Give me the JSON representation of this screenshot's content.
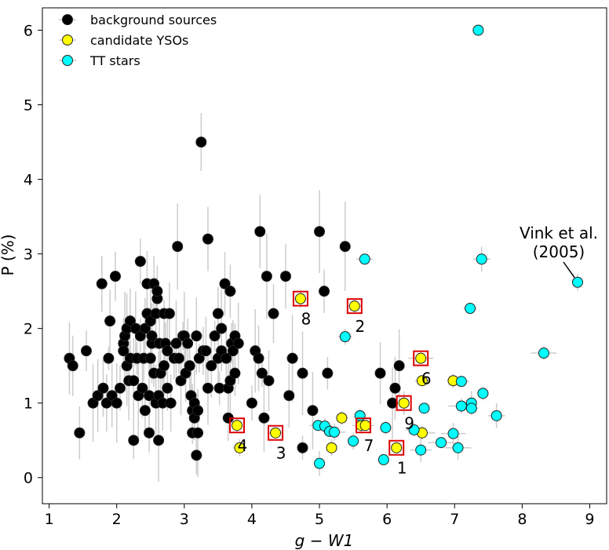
{
  "chart_data": {
    "type": "scatter",
    "title": "",
    "xlabel_base": "g",
    "xlabel_sep": " − ",
    "xlabel_band": "W1",
    "ylabel": "P (%)",
    "xlim": [
      0.9,
      9.25
    ],
    "ylim": [
      -0.35,
      6.3
    ],
    "xticks": [
      "1",
      "2",
      "3",
      "4",
      "5",
      "6",
      "7",
      "8",
      "9"
    ],
    "yticks": [
      "0",
      "1",
      "2",
      "3",
      "4",
      "5",
      "6"
    ],
    "legend_position": "top-left",
    "series": [
      {
        "name": "background sources",
        "color": "#000000",
        "points": [
          [
            1.3,
            1.6
          ],
          [
            1.35,
            1.5
          ],
          [
            1.45,
            0.6
          ],
          [
            1.55,
            1.7
          ],
          [
            1.65,
            1.0
          ],
          [
            1.72,
            1.1
          ],
          [
            1.78,
            2.6
          ],
          [
            1.8,
            1.2
          ],
          [
            1.85,
            1.0
          ],
          [
            1.88,
            1.6
          ],
          [
            1.9,
            2.1
          ],
          [
            1.93,
            1.1
          ],
          [
            1.98,
            2.7
          ],
          [
            2.0,
            1.0
          ],
          [
            2.05,
            1.2
          ],
          [
            2.1,
            1.8
          ],
          [
            2.1,
            1.7
          ],
          [
            2.12,
            1.9
          ],
          [
            2.15,
            2.0
          ],
          [
            2.15,
            1.5
          ],
          [
            2.18,
            1.3
          ],
          [
            2.2,
            1.6
          ],
          [
            2.2,
            2.1
          ],
          [
            2.25,
            1.3
          ],
          [
            2.25,
            0.5
          ],
          [
            2.28,
            2.0
          ],
          [
            2.3,
            1.6
          ],
          [
            2.32,
            1.1
          ],
          [
            2.35,
            1.9
          ],
          [
            2.35,
            2.9
          ],
          [
            2.38,
            1.2
          ],
          [
            2.4,
            1.6
          ],
          [
            2.42,
            0.9
          ],
          [
            2.42,
            2.0
          ],
          [
            2.45,
            2.2
          ],
          [
            2.45,
            2.6
          ],
          [
            2.48,
            1.1
          ],
          [
            2.48,
            0.6
          ],
          [
            2.5,
            1.6
          ],
          [
            2.5,
            2.1
          ],
          [
            2.52,
            1.8
          ],
          [
            2.52,
            1.9
          ],
          [
            2.55,
            1.4
          ],
          [
            2.55,
            2.6
          ],
          [
            2.58,
            1.0
          ],
          [
            2.58,
            2.2
          ],
          [
            2.6,
            2.4
          ],
          [
            2.6,
            2.5
          ],
          [
            2.62,
            1.1
          ],
          [
            2.62,
            0.5
          ],
          [
            2.63,
            1.8
          ],
          [
            2.65,
            1.4
          ],
          [
            2.68,
            1.0
          ],
          [
            2.7,
            2.2
          ],
          [
            2.7,
            1.5
          ],
          [
            2.72,
            1.8
          ],
          [
            2.75,
            1.2
          ],
          [
            2.75,
            1.7
          ],
          [
            2.78,
            2.2
          ],
          [
            2.8,
            1.0
          ],
          [
            2.85,
            1.6
          ],
          [
            2.88,
            1.8
          ],
          [
            2.9,
            3.1
          ],
          [
            2.92,
            1.6
          ],
          [
            2.95,
            1.3
          ],
          [
            2.98,
            1.9
          ],
          [
            3.0,
            1.9
          ],
          [
            3.02,
            1.4
          ],
          [
            3.05,
            1.8
          ],
          [
            3.08,
            1.5
          ],
          [
            3.1,
            1.1
          ],
          [
            3.12,
            0.9
          ],
          [
            3.12,
            0.6
          ],
          [
            3.15,
            1.0
          ],
          [
            3.15,
            0.8
          ],
          [
            3.18,
            0.3
          ],
          [
            3.18,
            1.9
          ],
          [
            3.2,
            0.6
          ],
          [
            3.2,
            0.9
          ],
          [
            3.22,
            1.6
          ],
          [
            3.25,
            4.5
          ],
          [
            3.28,
            1.7
          ],
          [
            3.32,
            1.7
          ],
          [
            3.35,
            1.2
          ],
          [
            3.35,
            3.2
          ],
          [
            3.4,
            1.5
          ],
          [
            3.45,
            1.9
          ],
          [
            3.5,
            2.2
          ],
          [
            3.5,
            1.6
          ],
          [
            3.52,
            1.2
          ],
          [
            3.55,
            1.7
          ],
          [
            3.55,
            2.0
          ],
          [
            3.6,
            2.6
          ],
          [
            3.62,
            1.6
          ],
          [
            3.65,
            1.2
          ],
          [
            3.65,
            0.8
          ],
          [
            3.68,
            1.3
          ],
          [
            3.68,
            2.5
          ],
          [
            3.7,
            1.8
          ],
          [
            3.72,
            1.7
          ],
          [
            3.75,
            1.9
          ],
          [
            3.75,
            1.4
          ],
          [
            3.8,
            1.8
          ],
          [
            4.0,
            1.0
          ],
          [
            4.05,
            1.7
          ],
          [
            4.1,
            1.6
          ],
          [
            4.12,
            3.3
          ],
          [
            4.15,
            1.4
          ],
          [
            4.18,
            0.8
          ],
          [
            4.22,
            2.7
          ],
          [
            4.25,
            1.3
          ],
          [
            4.32,
            2.2
          ],
          [
            4.5,
            2.7
          ],
          [
            4.55,
            1.1
          ],
          [
            4.6,
            1.6
          ],
          [
            4.75,
            1.4
          ],
          [
            4.75,
            0.4
          ],
          [
            4.9,
            0.9
          ],
          [
            5.0,
            3.3
          ],
          [
            5.07,
            2.5
          ],
          [
            5.12,
            1.4
          ],
          [
            5.38,
            3.1
          ],
          [
            5.9,
            1.4
          ],
          [
            6.08,
            1.0
          ],
          [
            6.12,
            1.2
          ],
          [
            6.18,
            1.5
          ]
        ]
      },
      {
        "name": "candidate YSOs",
        "color": "#ffff00",
        "points": [
          [
            4.72,
            2.4
          ],
          [
            5.52,
            2.3
          ],
          [
            6.5,
            1.6
          ],
          [
            6.52,
            1.3
          ],
          [
            6.98,
            1.3
          ],
          [
            6.25,
            1.0
          ],
          [
            3.78,
            0.7
          ],
          [
            5.62,
            0.7
          ],
          [
            5.68,
            0.7
          ],
          [
            4.35,
            0.6
          ],
          [
            3.82,
            0.4
          ],
          [
            5.18,
            0.4
          ],
          [
            5.33,
            0.8
          ],
          [
            6.52,
            0.6
          ],
          [
            6.14,
            0.4
          ]
        ]
      },
      {
        "name": "TT stars",
        "color": "#00ffff",
        "points": [
          [
            7.35,
            6.0
          ],
          [
            7.4,
            2.93
          ],
          [
            5.67,
            2.93
          ],
          [
            7.23,
            2.27
          ],
          [
            8.82,
            2.62
          ],
          [
            5.38,
            1.89
          ],
          [
            8.32,
            1.67
          ],
          [
            7.1,
            1.29
          ],
          [
            7.42,
            1.13
          ],
          [
            7.25,
            1.0
          ],
          [
            7.1,
            0.96
          ],
          [
            7.25,
            0.93
          ],
          [
            6.55,
            0.93
          ],
          [
            7.62,
            0.83
          ],
          [
            5.6,
            0.83
          ],
          [
            4.98,
            0.7
          ],
          [
            5.08,
            0.69
          ],
          [
            5.15,
            0.62
          ],
          [
            5.22,
            0.61
          ],
          [
            5.98,
            0.67
          ],
          [
            6.4,
            0.64
          ],
          [
            6.98,
            0.59
          ],
          [
            6.8,
            0.47
          ],
          [
            5.5,
            0.49
          ],
          [
            7.05,
            0.4
          ],
          [
            6.5,
            0.37
          ],
          [
            5.95,
            0.24
          ],
          [
            5.0,
            0.19
          ]
        ]
      }
    ],
    "boxed_candidates": [
      {
        "label": "8",
        "x": 4.72,
        "y": 2.4
      },
      {
        "label": "2",
        "x": 5.52,
        "y": 2.3
      },
      {
        "label": "6",
        "x": 6.5,
        "y": 1.6
      },
      {
        "label": "9",
        "x": 6.25,
        "y": 1.0
      },
      {
        "label": "4",
        "x": 3.78,
        "y": 0.7
      },
      {
        "label": "7",
        "x": 5.65,
        "y": 0.7
      },
      {
        "label": "3",
        "x": 4.35,
        "y": 0.6
      },
      {
        "label": "1",
        "x": 6.14,
        "y": 0.4
      }
    ],
    "annotation": {
      "line1": "Vink et al.",
      "line2": "(2005)",
      "target_x": 8.82,
      "target_y": 2.62
    }
  }
}
